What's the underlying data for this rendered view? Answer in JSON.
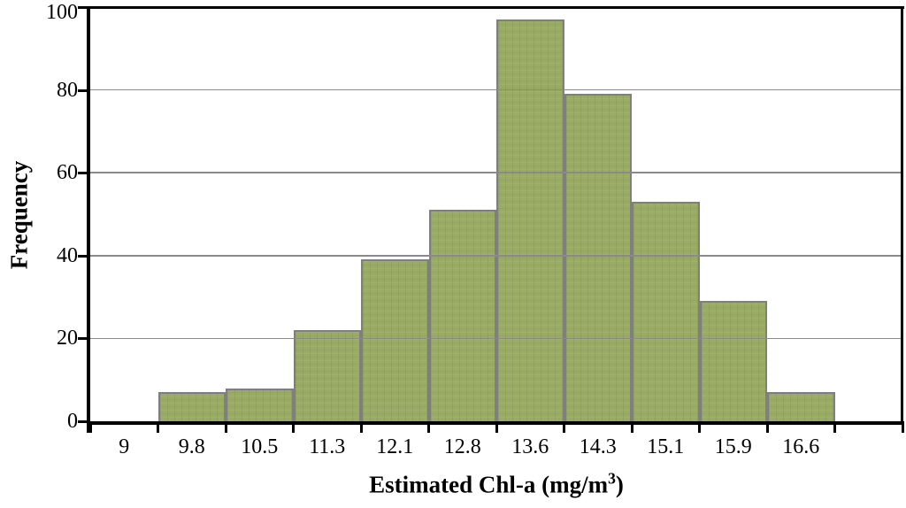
{
  "chart_data": {
    "type": "bar",
    "subtype": "histogram",
    "title": "",
    "ylabel": "Frequency",
    "xlabel_parts": {
      "prefix": "Estimated Chl-a (mg/m",
      "superscript": "3",
      "suffix": ")"
    },
    "categories": [
      "9",
      "9.8",
      "10.5",
      "11.3",
      "12.1",
      "12.8",
      "13.6",
      "14.3",
      "15.1",
      "15.9",
      "16.6",
      ""
    ],
    "values": [
      0,
      7,
      8,
      22,
      39,
      51,
      97,
      79,
      53,
      29,
      7,
      0
    ],
    "ylim": [
      0,
      100
    ],
    "yticks": [
      0,
      20,
      40,
      60,
      80,
      100
    ],
    "grid": "horizontal",
    "gridlines_over_bars": true,
    "bar_gap": 0,
    "legend": "none",
    "colors": {
      "bar_fill": "#9aab66",
      "bar_border": "#7f7f7f",
      "gridline": "#8a8a8a",
      "axis": "#000000",
      "text": "#000000",
      "background": "#ffffff"
    }
  }
}
